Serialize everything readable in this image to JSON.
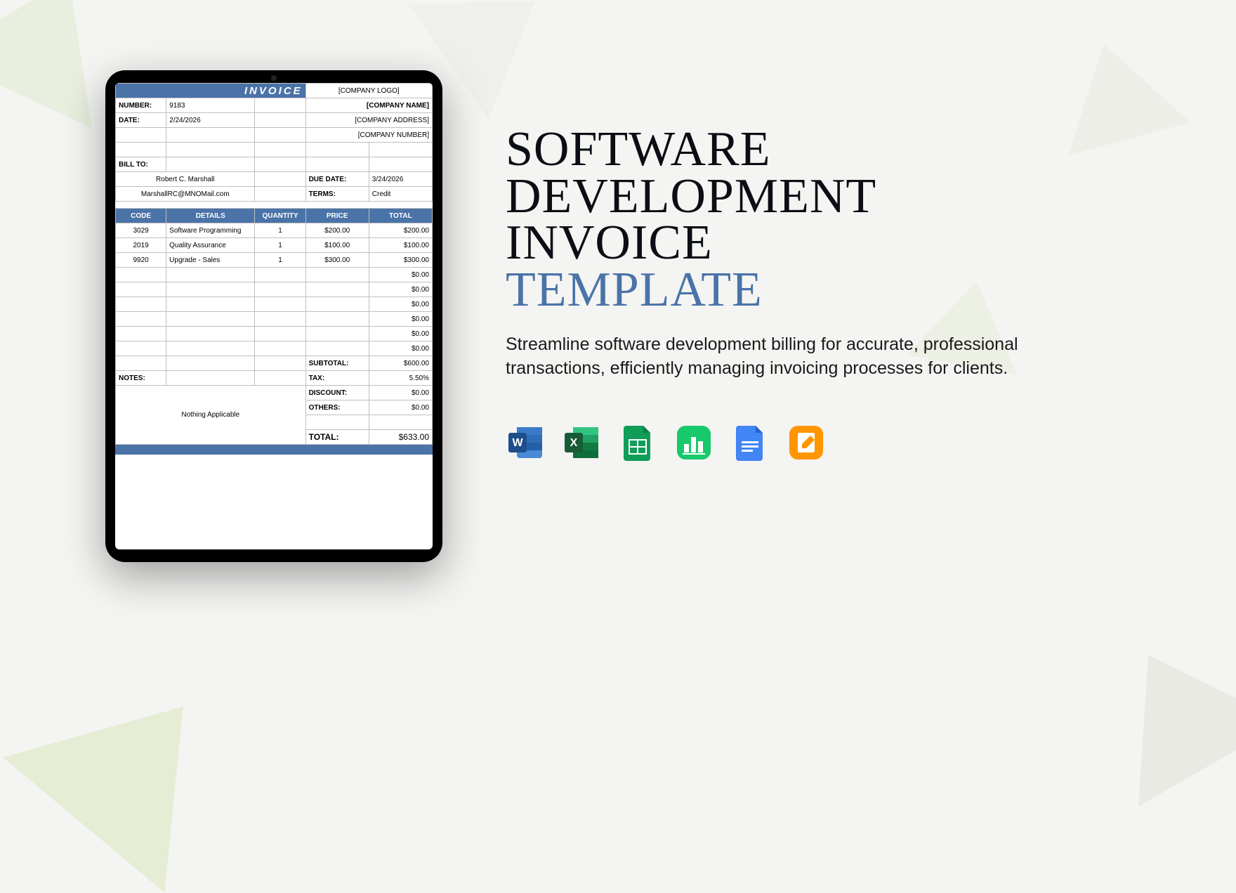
{
  "colors": {
    "accent": "#4a73a8",
    "text": "#0b0e14",
    "bg": "#f4f4f2",
    "border": "#bfbfbf"
  },
  "invoice": {
    "banner": "INVOICE",
    "logo_placeholder": "[COMPANY LOGO]",
    "number_label": "NUMBER:",
    "number_value": "9183",
    "company_name": "[COMPANY NAME]",
    "date_label": "DATE:",
    "date_value": "2/24/2026",
    "company_address": "[COMPANY ADDRESS]",
    "company_number": "[COMPANY NUMBER]",
    "billto_label": "BILL TO:",
    "bill_name": "Robert C. Marshall",
    "bill_email": "MarshallRC@MNOMail.com",
    "duedate_label": "DUE DATE:",
    "duedate_value": "3/24/2026",
    "terms_label": "TERMS:",
    "terms_value": "Credit",
    "columns": {
      "code": "CODE",
      "details": "DETAILS",
      "quantity": "QUANTITY",
      "price": "PRICE",
      "total": "TOTAL"
    },
    "rows": [
      {
        "code": "3029",
        "details": "Software Programming",
        "qty": "1",
        "price": "$200.00",
        "total": "$200.00"
      },
      {
        "code": "2019",
        "details": "Quality Assurance",
        "qty": "1",
        "price": "$100.00",
        "total": "$100.00"
      },
      {
        "code": "9920",
        "details": "Upgrade - Sales",
        "qty": "1",
        "price": "$300.00",
        "total": "$300.00"
      }
    ],
    "empty_total": "$0.00",
    "subtotal_label": "SUBTOTAL:",
    "subtotal_value": "$600.00",
    "notes_label": "NOTES:",
    "tax_label": "TAX:",
    "tax_value": "5.50%",
    "discount_label": "DISCOUNT:",
    "discount_value": "$0.00",
    "others_label": "OTHERS:",
    "others_value": "$0.00",
    "notes_text": "Nothing Applicable",
    "total_label": "TOTAL:",
    "total_value": "$633.00"
  },
  "headline": {
    "line1": "SOFTWARE",
    "line2": "DEVELOPMENT",
    "line3": "INVOICE",
    "line4": "TEMPLATE"
  },
  "description": "Streamline software development billing for accurate, professional transactions, efficiently managing invoicing processes for clients.",
  "apps": {
    "word": {
      "name": "word-icon",
      "colors": [
        "#2b579a",
        "#4a8ad4"
      ]
    },
    "excel": {
      "name": "excel-icon",
      "colors": [
        "#185c37",
        "#21a366"
      ]
    },
    "sheets": {
      "name": "sheets-icon",
      "colors": [
        "#0f9d58"
      ]
    },
    "numbers": {
      "name": "numbers-icon",
      "colors": [
        "#18c96b"
      ]
    },
    "docs": {
      "name": "docs-icon",
      "colors": [
        "#4285f4"
      ]
    },
    "pages": {
      "name": "pages-icon",
      "colors": [
        "#ff9500"
      ]
    }
  }
}
